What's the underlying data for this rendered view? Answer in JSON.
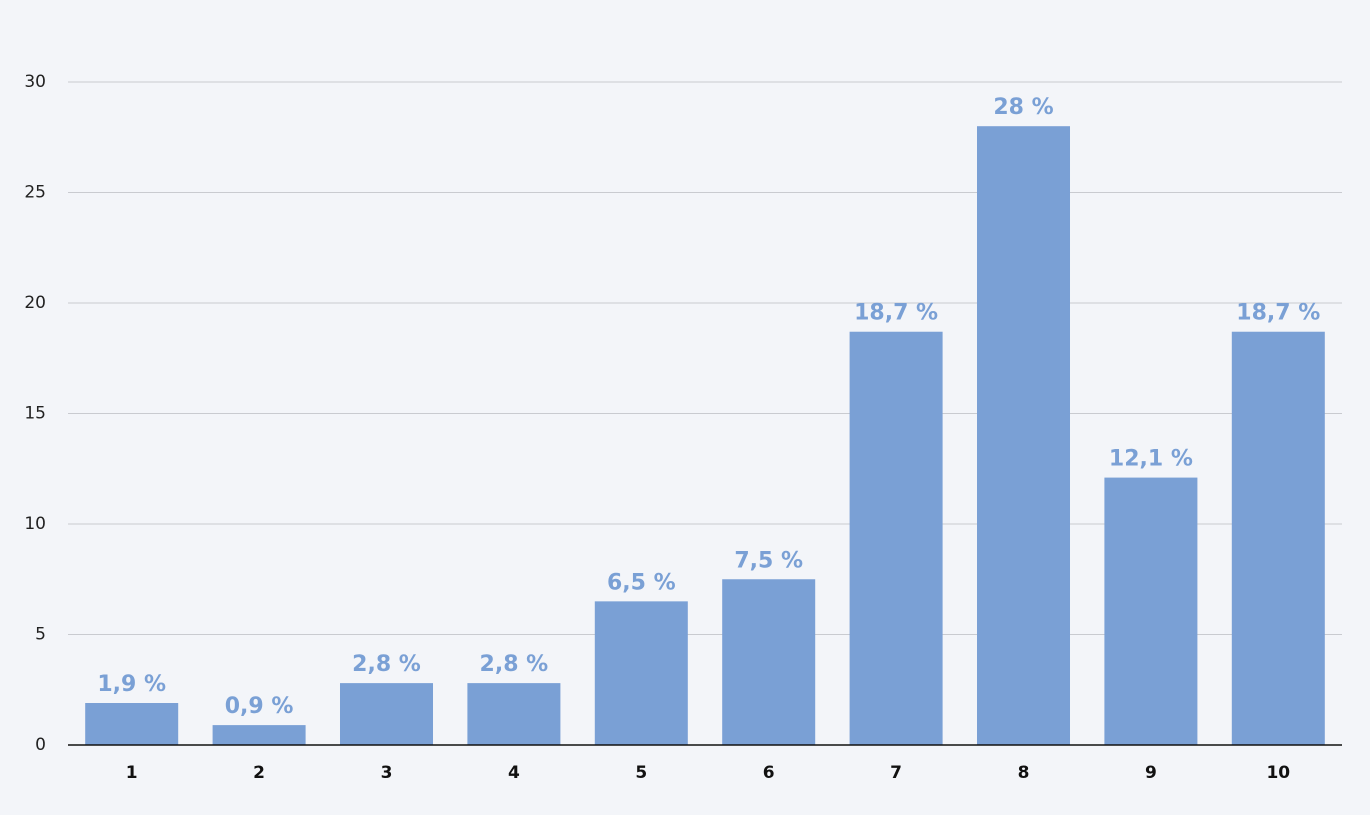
{
  "chart_data": {
    "type": "bar",
    "categories": [
      "1",
      "2",
      "3",
      "4",
      "5",
      "6",
      "7",
      "8",
      "9",
      "10"
    ],
    "values": [
      1.9,
      0.9,
      2.8,
      2.8,
      6.5,
      7.5,
      18.7,
      28,
      12.1,
      18.7
    ],
    "value_labels": [
      "1,9 %",
      "0,9 %",
      "2,8 %",
      "2,8 %",
      "6,5 %",
      "7,5 %",
      "18,7 %",
      "28 %",
      "12,1 %",
      "18,7 %"
    ],
    "color": "#7aa0d5",
    "ylim": [
      0,
      30
    ],
    "yticks": [
      0,
      5,
      10,
      15,
      20,
      25,
      30
    ],
    "grid": true
  }
}
